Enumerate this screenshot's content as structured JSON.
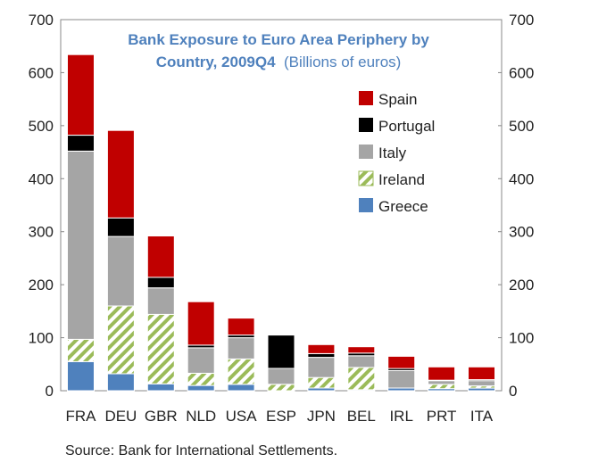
{
  "chart_data": {
    "type": "bar",
    "stacked": true,
    "title_line1": "Bank Exposure to Euro Area Periphery by",
    "title_line2_bold": "Country, 2009Q4",
    "title_line2_unit": "(Billions of euros)",
    "xlabel": "",
    "ylabel": "",
    "ylim": [
      0,
      700
    ],
    "yticks": [
      "0",
      "100",
      "200",
      "300",
      "400",
      "500",
      "600",
      "700"
    ],
    "ytick_values": [
      0,
      100,
      200,
      300,
      400,
      500,
      600,
      700
    ],
    "secondary_axis": true,
    "grid": false,
    "legend_position": "top-right",
    "categories": [
      "FRA",
      "DEU",
      "GBR",
      "NLD",
      "USA",
      "ESP",
      "JPN",
      "BEL",
      "IRL",
      "PRT",
      "ITA"
    ],
    "series": [
      {
        "name": "Greece",
        "color": "#4f81bd",
        "pattern": "solid",
        "values": [
          55,
          32,
          13,
          10,
          12,
          0,
          5,
          2,
          5,
          4,
          5
        ]
      },
      {
        "name": "Ireland",
        "color": "#9bbb59",
        "pattern": "hatch",
        "values": [
          42,
          128,
          131,
          23,
          48,
          12,
          20,
          42,
          0,
          8,
          4
        ]
      },
      {
        "name": "Italy",
        "color": "#a5a5a5",
        "pattern": "solid",
        "values": [
          355,
          131,
          50,
          48,
          40,
          30,
          38,
          22,
          33,
          7,
          10
        ]
      },
      {
        "name": "Portugal",
        "color": "#000000",
        "pattern": "solid",
        "values": [
          30,
          35,
          20,
          5,
          5,
          63,
          7,
          5,
          4,
          1,
          2
        ]
      },
      {
        "name": "Spain",
        "color": "#c00000",
        "pattern": "solid",
        "values": [
          152,
          165,
          78,
          82,
          32,
          0,
          17,
          12,
          23,
          25,
          24
        ]
      }
    ],
    "legend_order": [
      "Spain",
      "Portugal",
      "Italy",
      "Ireland",
      "Greece"
    ]
  },
  "source": "Source: Bank for International Settlements."
}
